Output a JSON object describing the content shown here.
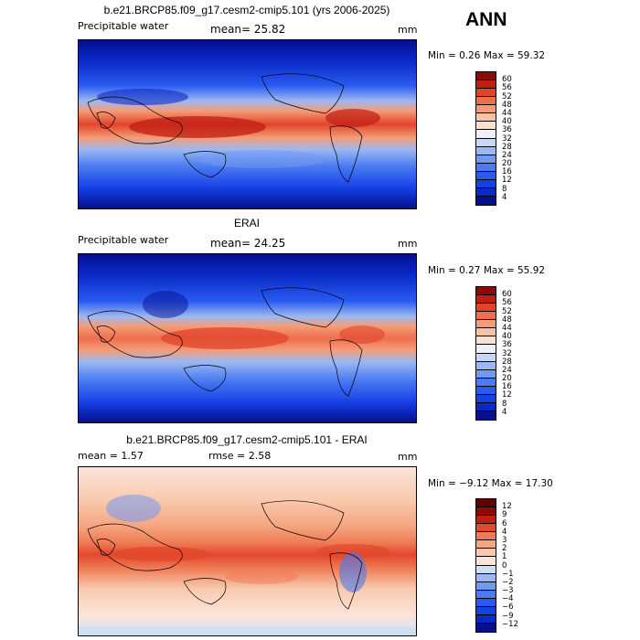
{
  "season": "ANN",
  "units": "mm",
  "panels": [
    {
      "title": "b.e21.BRCP85.f09_g17.cesm2-cmip5.101 (yrs 2006-2025)",
      "variable": "Precipitable water",
      "stat_line": "mean=  25.82",
      "minmax": "Min =   0.26 Max =  59.32",
      "colorbar": {
        "labels": [
          "4",
          "8",
          "12",
          "16",
          "20",
          "24",
          "28",
          "32",
          "36",
          "40",
          "44",
          "48",
          "52",
          "56",
          "60"
        ],
        "colors": [
          "#04108e",
          "#0a29c6",
          "#1540e3",
          "#2a5bf0",
          "#4a7bf2",
          "#7299f2",
          "#9bb8f2",
          "#c6d8f6",
          "#eef2f8",
          "#fbe0d0",
          "#f9c2a3",
          "#f59c76",
          "#ef6e4e",
          "#e2442b",
          "#c11e12",
          "#8c0b06"
        ]
      }
    },
    {
      "title": "ERAI",
      "variable": "Precipitable water",
      "stat_line": "mean=  24.25",
      "minmax": "Min =   0.27 Max =  55.92",
      "colorbar": {
        "labels": [
          "4",
          "8",
          "12",
          "16",
          "20",
          "24",
          "28",
          "32",
          "36",
          "40",
          "44",
          "48",
          "52",
          "56",
          "60"
        ],
        "colors": [
          "#04108e",
          "#0a29c6",
          "#1540e3",
          "#2a5bf0",
          "#4a7bf2",
          "#7299f2",
          "#9bb8f2",
          "#c6d8f6",
          "#eef2f8",
          "#fbe0d0",
          "#f9c2a3",
          "#f59c76",
          "#ef6e4e",
          "#e2442b",
          "#c11e12",
          "#8c0b06"
        ]
      }
    },
    {
      "title": "b.e21.BRCP85.f09_g17.cesm2-cmip5.101 - ERAI",
      "mean_line": "mean =   1.57",
      "rmse_line": "rmse =   2.58",
      "minmax": "Min = −9.12 Max =  17.30",
      "colorbar": {
        "labels": [
          "−12",
          "−9",
          "−6",
          "−4",
          "−3",
          "−2",
          "−1",
          "0",
          "1",
          "2",
          "3",
          "4",
          "6",
          "9",
          "12"
        ],
        "colors": [
          "#04108e",
          "#0a29c6",
          "#1540e3",
          "#2a5bf0",
          "#4a7bf2",
          "#7299f2",
          "#9bb8f2",
          "#cfe0f6",
          "#fbe5d8",
          "#f9c9ad",
          "#f5a580",
          "#ef7a55",
          "#e2482c",
          "#c11e12",
          "#8c0b06",
          "#600000"
        ]
      }
    }
  ]
}
